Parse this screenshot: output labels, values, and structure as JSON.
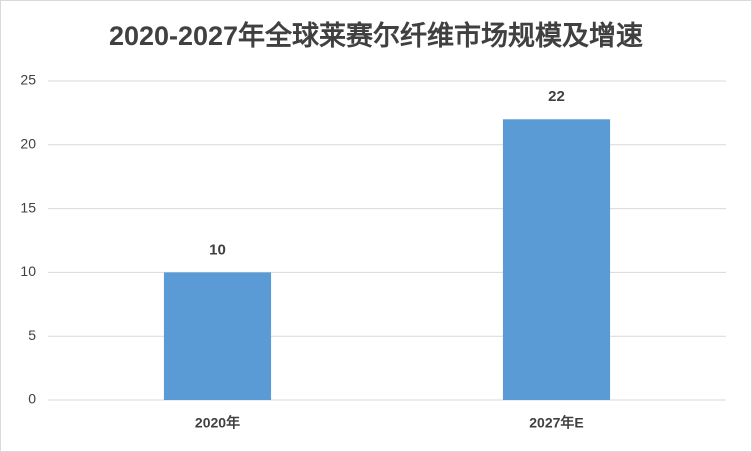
{
  "chart_data": {
    "type": "bar",
    "title": "2020-2027年全球莱赛尔纤维市场规模及增速",
    "categories": [
      "2020年",
      "2027年E"
    ],
    "values": [
      10,
      22
    ],
    "color": "#5b9bd5",
    "ylim": [
      0,
      25
    ],
    "yticks": [
      0,
      5,
      10,
      15,
      20,
      25
    ],
    "grid": true,
    "data_labels": true
  }
}
